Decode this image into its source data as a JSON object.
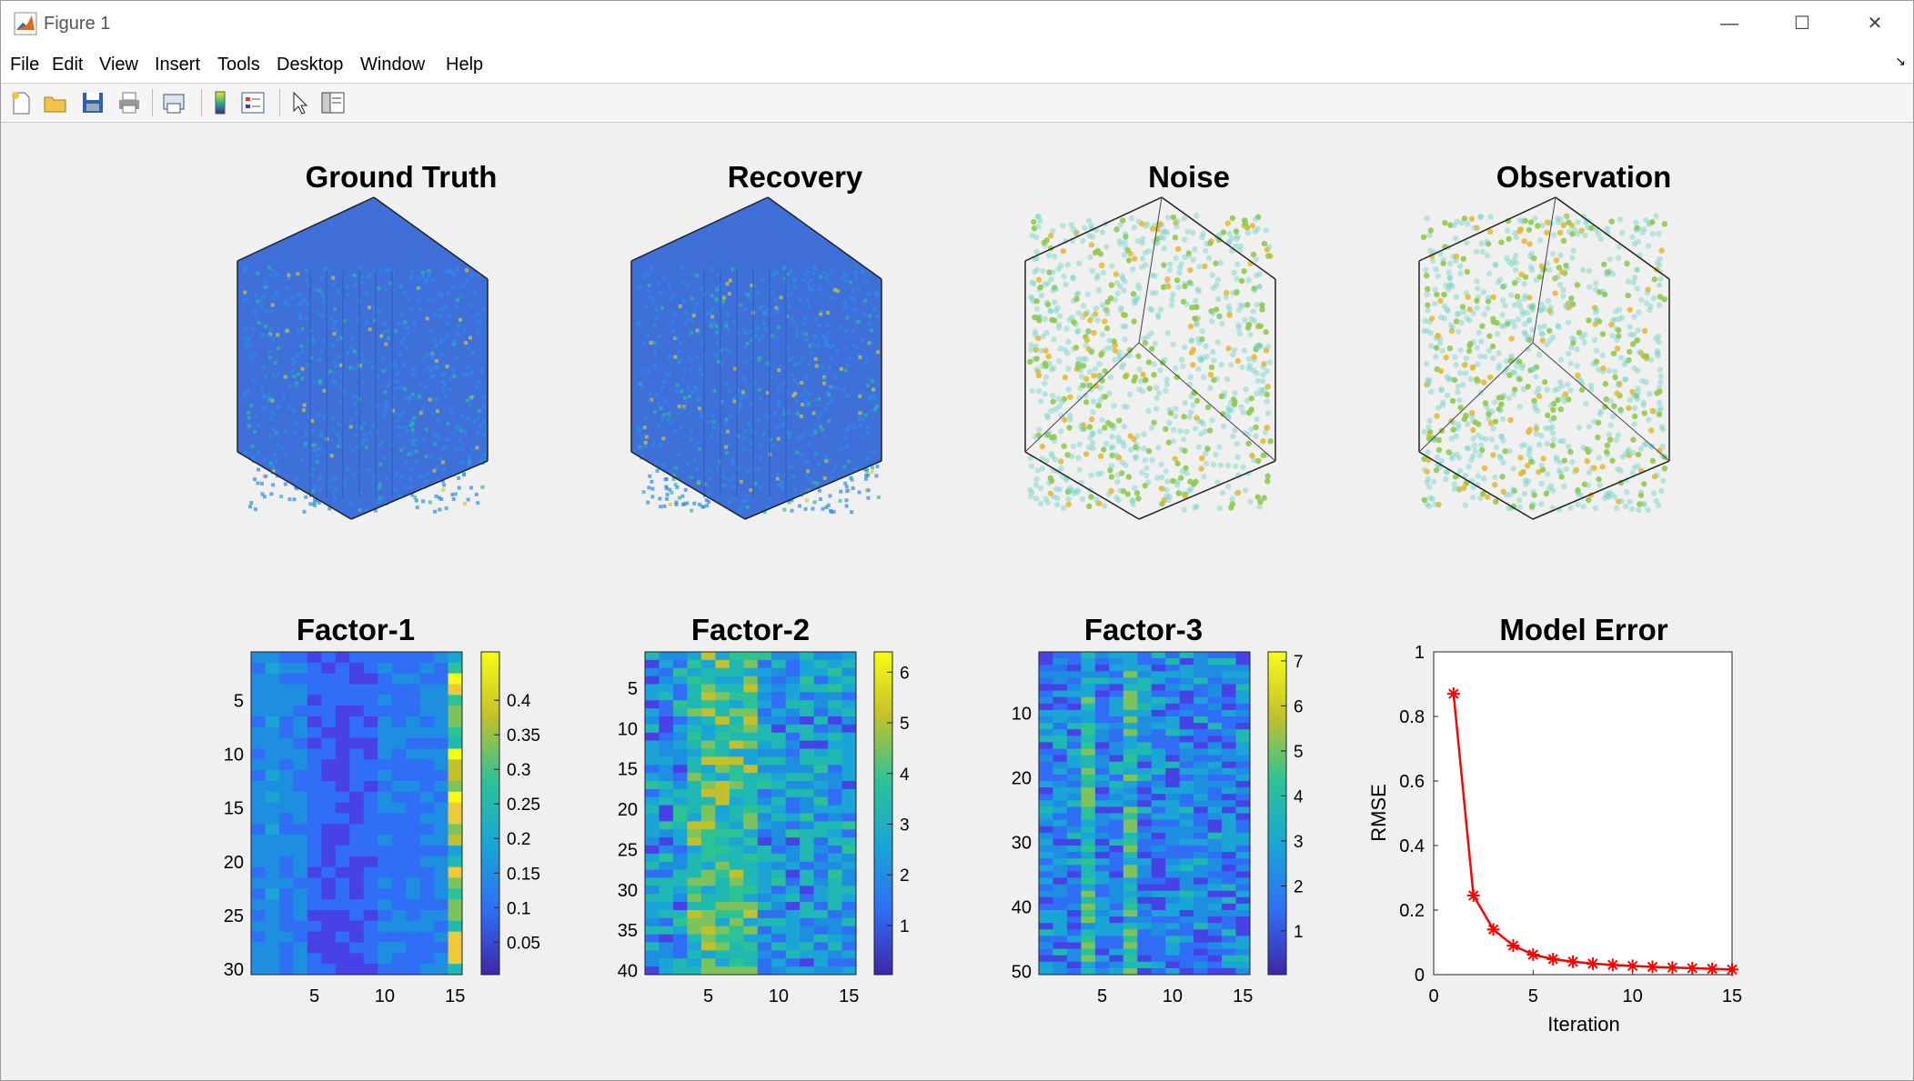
{
  "window": {
    "title": "Figure 1",
    "minimize": "—",
    "maximize": "☐",
    "close": "✕"
  },
  "menu": [
    "File",
    "Edit",
    "View",
    "Insert",
    "Tools",
    "Desktop",
    "Window",
    "Help"
  ],
  "toolbar_icons": [
    "new-figure-icon",
    "open-file-icon",
    "save-icon",
    "print-icon",
    "print-preview-icon",
    "insert-colorbar-icon",
    "insert-legend-icon",
    "pointer-icon",
    "property-inspector-icon"
  ],
  "panels": {
    "ground_truth": "Ground Truth",
    "recovery": "Recovery",
    "noise": "Noise",
    "observation": "Observation",
    "factor1": "Factor-1",
    "factor2": "Factor-2",
    "factor3": "Factor-3",
    "model_error": "Model Error"
  },
  "factor1": {
    "yticks": [
      "5",
      "10",
      "15",
      "20",
      "25",
      "30"
    ],
    "xticks": [
      "5",
      "10",
      "15"
    ],
    "cbticks": [
      "0.4",
      "0.35",
      "0.3",
      "0.25",
      "0.2",
      "0.15",
      "0.1",
      "0.05"
    ]
  },
  "factor2": {
    "yticks": [
      "5",
      "10",
      "15",
      "20",
      "25",
      "30",
      "35",
      "40"
    ],
    "xticks": [
      "5",
      "10",
      "15"
    ],
    "cbticks": [
      "6",
      "5",
      "4",
      "3",
      "2",
      "1"
    ]
  },
  "factor3": {
    "yticks": [
      "10",
      "20",
      "30",
      "40",
      "50"
    ],
    "xticks": [
      "5",
      "10",
      "15"
    ],
    "cbticks": [
      "7",
      "6",
      "5",
      "4",
      "3",
      "2",
      "1"
    ]
  },
  "colors": {
    "line": "#ff0000",
    "window_bg": "#f0f0f0"
  },
  "chart_data": {
    "type": "line",
    "title": "Model Error",
    "xlabel": "Iteration",
    "ylabel": "RMSE",
    "xlim": [
      0,
      15
    ],
    "ylim": [
      0,
      1
    ],
    "xticks": [
      "0",
      "5",
      "10",
      "15"
    ],
    "yticks": [
      "0",
      "0.2",
      "0.4",
      "0.6",
      "0.8",
      "1"
    ],
    "series": [
      {
        "x": [
          1,
          2,
          3,
          4,
          5,
          6,
          7,
          8,
          9,
          10,
          11,
          12,
          13,
          14,
          15
        ],
        "values": [
          0.87,
          0.245,
          0.14,
          0.09,
          0.062,
          0.048,
          0.04,
          0.034,
          0.03,
          0.027,
          0.024,
          0.022,
          0.02,
          0.018,
          0.016
        ]
      }
    ]
  }
}
